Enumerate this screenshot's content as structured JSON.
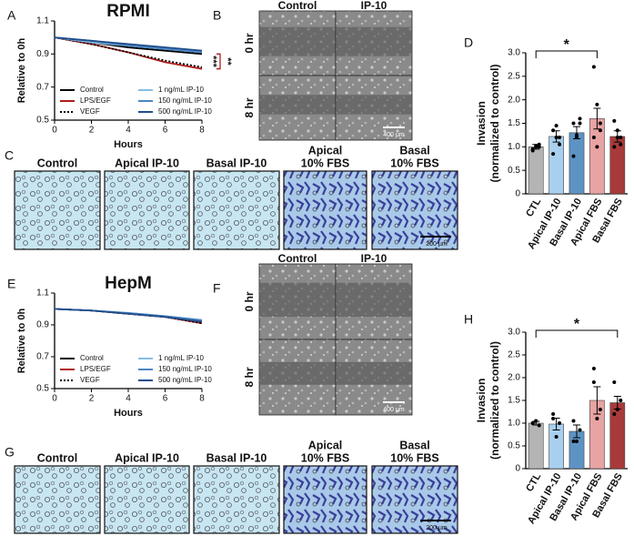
{
  "figure": {
    "panel_letters": [
      "A",
      "B",
      "C",
      "D",
      "E",
      "F",
      "G",
      "H"
    ],
    "wound_panels": [
      {
        "columns": [
          "Control",
          "IP-10"
        ],
        "rows": [
          "0 hr",
          "8 hr"
        ],
        "scale_bar": "400 µm"
      },
      {
        "columns": [
          "Control",
          "IP-10"
        ],
        "rows": [
          "0 hr",
          "8 hr"
        ],
        "scale_bar": "400 µm"
      }
    ],
    "invasion_panels": [
      {
        "labels": [
          [
            "Control"
          ],
          [
            "Apical IP-10"
          ],
          [
            "Basal IP-10"
          ],
          [
            "Apical",
            "10% FBS"
          ],
          [
            "Basal",
            "10% FBS"
          ]
        ],
        "scale_bar": "200 µm"
      },
      {
        "labels": [
          [
            "Control"
          ],
          [
            "Apical IP-10"
          ],
          [
            "Basal IP-10"
          ],
          [
            "Apical",
            "10% FBS"
          ],
          [
            "Basal",
            "10% FBS"
          ]
        ],
        "scale_bar": "200 µm"
      }
    ]
  },
  "chart_data": [
    {
      "type": "line",
      "title": "RPMI",
      "xlabel": "Hours",
      "ylabel": "Relative to 0h",
      "x": [
        0,
        2,
        4,
        6,
        8
      ],
      "xlim": [
        0,
        8
      ],
      "xticks": [
        0,
        2,
        4,
        6,
        8
      ],
      "ylim": [
        0.5,
        1.1
      ],
      "yticks": [
        0.5,
        0.7,
        0.9,
        1.1
      ],
      "series": [
        {
          "name": "Control",
          "color": "#000000",
          "dash": "solid",
          "values": [
            1.0,
            0.97,
            0.94,
            0.92,
            0.9
          ]
        },
        {
          "name": "LPS/EGF",
          "color": "#b01c1c",
          "dash": "solid",
          "values": [
            1.0,
            0.96,
            0.91,
            0.85,
            0.81
          ]
        },
        {
          "name": "VEGF",
          "color": "#000000",
          "dash": "dotted",
          "values": [
            1.0,
            0.96,
            0.91,
            0.86,
            0.82
          ]
        },
        {
          "name": "1 ng/mL IP-10",
          "color": "#86bde6",
          "dash": "solid",
          "values": [
            1.0,
            0.97,
            0.95,
            0.93,
            0.91
          ]
        },
        {
          "name": "150 ng/mL IP-10",
          "color": "#4a86c5",
          "dash": "solid",
          "values": [
            1.0,
            0.98,
            0.95,
            0.93,
            0.91
          ]
        },
        {
          "name": "500 ng/mL IP-10",
          "color": "#1f4e8c",
          "dash": "solid",
          "values": [
            1.0,
            0.98,
            0.96,
            0.94,
            0.92
          ]
        }
      ],
      "annotations": [
        "***",
        "**"
      ]
    },
    {
      "type": "bar",
      "ylabel": [
        "Invasion",
        "(normalized to control)"
      ],
      "categories": [
        "CTL",
        "Apical IP-10",
        "Basal IP-10",
        "Apical FBS",
        "Basal FBS"
      ],
      "values": [
        1.0,
        1.22,
        1.3,
        1.6,
        1.22
      ],
      "errors": [
        0.05,
        0.12,
        0.13,
        0.22,
        0.12
      ],
      "points": [
        [
          0.95,
          1.0,
          1.05,
          0.92,
          1.02,
          1.0
        ],
        [
          0.85,
          1.2,
          1.05,
          1.35,
          1.45,
          1.2
        ],
        [
          0.8,
          1.25,
          1.5,
          1.5,
          1.2,
          1.6
        ],
        [
          2.7,
          1.9,
          1.5,
          1.2,
          1.0,
          1.35
        ],
        [
          1.55,
          1.35,
          1.2,
          1.0,
          1.2,
          1.05
        ]
      ],
      "colors": [
        "#b4b4b4",
        "#a9cfee",
        "#5d93c4",
        "#e8a3a3",
        "#a83a3a"
      ],
      "ylim": [
        0,
        3
      ],
      "yticks": [
        0,
        0.5,
        {
          "value": 1,
          "label": "1.0"
        },
        1.5,
        {
          "value": 2,
          "label": "2.0"
        },
        2.5,
        {
          "value": 3,
          "label": "3.0"
        }
      ],
      "significance": {
        "label": "*",
        "between": [
          0,
          3
        ]
      }
    },
    {
      "type": "line",
      "title": "HepM",
      "xlabel": "Hours",
      "ylabel": "Relative to 0h",
      "x": [
        0,
        2,
        4,
        6,
        8
      ],
      "xlim": [
        0,
        8
      ],
      "xticks": [
        0,
        2,
        4,
        6,
        8
      ],
      "ylim": [
        0.5,
        1.1
      ],
      "yticks": [
        0.5,
        0.7,
        0.9,
        1.1
      ],
      "series": [
        {
          "name": "Control",
          "color": "#000000",
          "dash": "solid",
          "values": [
            1.0,
            0.99,
            0.97,
            0.95,
            0.92
          ]
        },
        {
          "name": "LPS/EGF",
          "color": "#b01c1c",
          "dash": "solid",
          "values": [
            1.0,
            0.99,
            0.97,
            0.95,
            0.91
          ]
        },
        {
          "name": "VEGF",
          "color": "#000000",
          "dash": "dotted",
          "values": [
            1.0,
            0.99,
            0.97,
            0.95,
            0.91
          ]
        },
        {
          "name": "1 ng/mL IP-10",
          "color": "#86bde6",
          "dash": "solid",
          "values": [
            1.0,
            0.99,
            0.975,
            0.955,
            0.93
          ]
        },
        {
          "name": "150 ng/mL IP-10",
          "color": "#4a86c5",
          "dash": "solid",
          "values": [
            1.0,
            0.99,
            0.975,
            0.955,
            0.93
          ]
        },
        {
          "name": "500 ng/mL IP-10",
          "color": "#1f4e8c",
          "dash": "solid",
          "values": [
            1.0,
            0.99,
            0.97,
            0.95,
            0.92
          ]
        }
      ]
    },
    {
      "type": "bar",
      "ylabel": [
        "Invasion",
        "(normalized to control)"
      ],
      "categories": [
        "CTL",
        "Apical IP-10",
        "Basal IP-10",
        "Apical FBS",
        "Basal FBS"
      ],
      "values": [
        1.0,
        0.98,
        0.82,
        1.5,
        1.45
      ],
      "errors": [
        0.04,
        0.13,
        0.14,
        0.3,
        0.14
      ],
      "points": [
        [
          1.0,
          1.05,
          0.95,
          1.0
        ],
        [
          1.2,
          0.7,
          1.0,
          1.1
        ],
        [
          1.05,
          0.6,
          0.85,
          0.6
        ],
        [
          2.2,
          1.1,
          1.3,
          1.9
        ],
        [
          1.9,
          1.3,
          1.5,
          1.2
        ]
      ],
      "colors": [
        "#b4b4b4",
        "#a9cfee",
        "#5d93c4",
        "#e8a3a3",
        "#a83a3a"
      ],
      "ylim": [
        0,
        3
      ],
      "yticks": [
        0,
        0.5,
        {
          "value": 1,
          "label": "1.0"
        },
        1.5,
        {
          "value": 2,
          "label": "2.0"
        },
        2.5,
        {
          "value": 3,
          "label": "3.0"
        }
      ],
      "significance": {
        "label": "*",
        "between": [
          0,
          4
        ]
      }
    }
  ]
}
